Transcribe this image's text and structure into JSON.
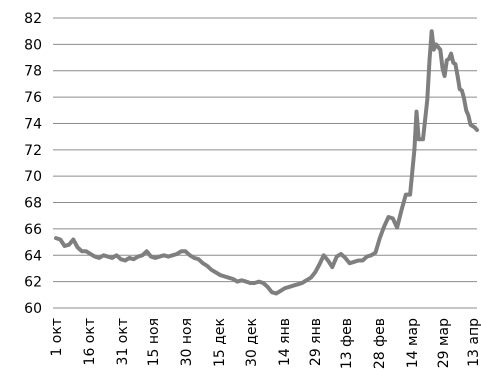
{
  "chart_data": {
    "type": "line",
    "title": "",
    "xlabel": "",
    "ylabel": "",
    "ylim": [
      60,
      82
    ],
    "y_ticks": [
      60,
      62,
      64,
      66,
      68,
      70,
      72,
      74,
      76,
      78,
      80,
      82
    ],
    "grid": "horizontal",
    "legend": "none",
    "x_ticks": [
      "1 окт",
      "16 окт",
      "31 окт",
      "15 ноя",
      "30 ноя",
      "15 дек",
      "30 дек",
      "14 янв",
      "29 янв",
      "13 фев",
      "28 фев",
      "14 мар",
      "29 мар",
      "13 апр"
    ],
    "series": [
      {
        "color": "#7f7f7f",
        "points": [
          [
            0,
            65.3
          ],
          [
            2,
            65.2
          ],
          [
            4,
            64.7
          ],
          [
            6,
            64.8
          ],
          [
            8,
            65.2
          ],
          [
            10,
            64.6
          ],
          [
            12,
            64.3
          ],
          [
            14,
            64.3
          ],
          [
            16,
            64.1
          ],
          [
            18,
            63.9
          ],
          [
            20,
            63.8
          ],
          [
            22,
            64.0
          ],
          [
            24,
            63.9
          ],
          [
            26,
            63.8
          ],
          [
            28,
            64.0
          ],
          [
            30,
            63.7
          ],
          [
            32,
            63.6
          ],
          [
            34,
            63.8
          ],
          [
            36,
            63.7
          ],
          [
            38,
            63.9
          ],
          [
            40,
            64.0
          ],
          [
            42,
            64.3
          ],
          [
            44,
            63.9
          ],
          [
            46,
            63.8
          ],
          [
            48,
            63.9
          ],
          [
            50,
            64.0
          ],
          [
            52,
            63.9
          ],
          [
            54,
            64.0
          ],
          [
            56,
            64.1
          ],
          [
            58,
            64.3
          ],
          [
            60,
            64.3
          ],
          [
            62,
            64.0
          ],
          [
            64,
            63.8
          ],
          [
            66,
            63.7
          ],
          [
            68,
            63.4
          ],
          [
            70,
            63.2
          ],
          [
            72,
            62.9
          ],
          [
            74,
            62.7
          ],
          [
            76,
            62.5
          ],
          [
            78,
            62.4
          ],
          [
            80,
            62.3
          ],
          [
            82,
            62.2
          ],
          [
            84,
            62.0
          ],
          [
            86,
            62.1
          ],
          [
            88,
            62.0
          ],
          [
            90,
            61.9
          ],
          [
            92,
            61.9
          ],
          [
            94,
            62.0
          ],
          [
            96,
            61.9
          ],
          [
            98,
            61.6
          ],
          [
            100,
            61.2
          ],
          [
            102,
            61.1
          ],
          [
            104,
            61.3
          ],
          [
            106,
            61.5
          ],
          [
            108,
            61.6
          ],
          [
            110,
            61.7
          ],
          [
            112,
            61.8
          ],
          [
            114,
            61.9
          ],
          [
            116,
            62.1
          ],
          [
            118,
            62.3
          ],
          [
            120,
            62.7
          ],
          [
            122,
            63.3
          ],
          [
            124,
            64.0
          ],
          [
            126,
            63.6
          ],
          [
            128,
            63.1
          ],
          [
            130,
            63.9
          ],
          [
            132,
            64.1
          ],
          [
            134,
            63.8
          ],
          [
            136,
            63.4
          ],
          [
            138,
            63.5
          ],
          [
            140,
            63.6
          ],
          [
            142,
            63.6
          ],
          [
            144,
            63.9
          ],
          [
            146,
            64.0
          ],
          [
            148,
            64.2
          ],
          [
            150,
            65.3
          ],
          [
            152,
            66.2
          ],
          [
            154,
            66.9
          ],
          [
            156,
            66.8
          ],
          [
            158,
            66.1
          ],
          [
            160,
            67.4
          ],
          [
            162,
            68.6
          ],
          [
            164,
            68.6
          ],
          [
            166,
            72.0
          ],
          [
            167,
            74.9
          ],
          [
            168,
            72.8
          ],
          [
            170,
            72.8
          ],
          [
            172,
            75.8
          ],
          [
            173,
            78.8
          ],
          [
            174,
            81.0
          ],
          [
            175,
            79.6
          ],
          [
            176,
            80.0
          ],
          [
            178,
            79.6
          ],
          [
            179,
            78.2
          ],
          [
            180,
            77.6
          ],
          [
            181,
            78.8
          ],
          [
            182,
            78.9
          ],
          [
            183,
            79.3
          ],
          [
            184,
            78.6
          ],
          [
            185,
            78.5
          ],
          [
            186,
            77.6
          ],
          [
            187,
            76.6
          ],
          [
            188,
            76.5
          ],
          [
            189,
            75.9
          ],
          [
            190,
            75.0
          ],
          [
            191,
            74.6
          ],
          [
            192,
            73.9
          ],
          [
            193,
            73.8
          ],
          [
            194,
            73.7
          ],
          [
            195,
            73.5
          ]
        ]
      }
    ]
  }
}
